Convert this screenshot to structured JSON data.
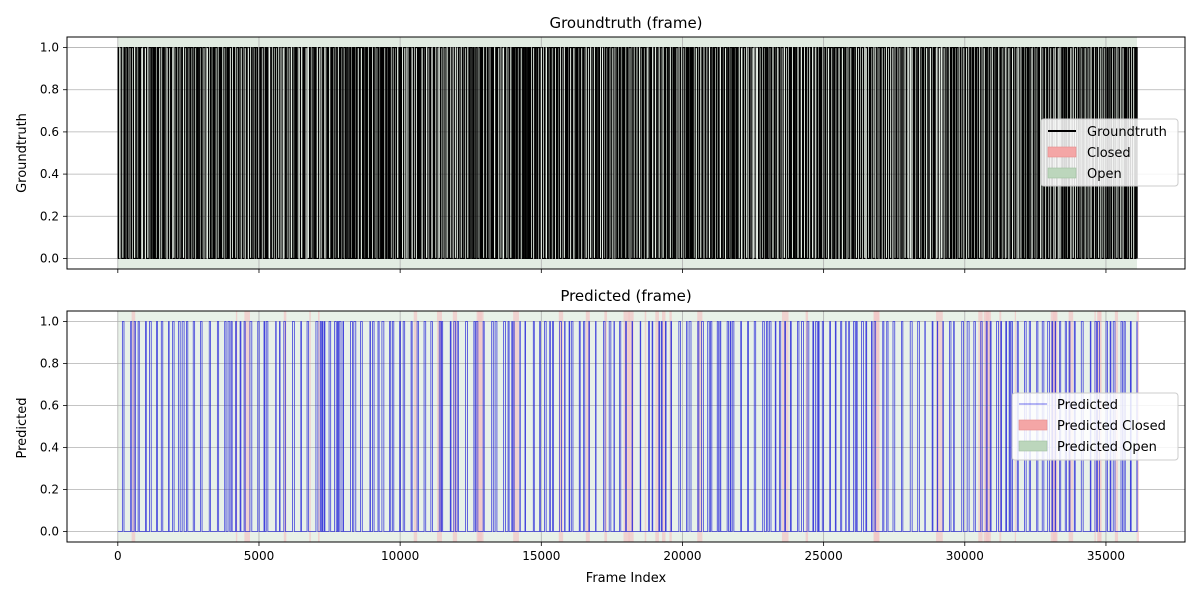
{
  "chart_data": [
    {
      "type": "line",
      "title": "Groundtruth (frame)",
      "xlabel": "",
      "ylabel": "Groundtruth",
      "xlim": [
        -1800,
        37800
      ],
      "ylim": [
        -0.05,
        1.05
      ],
      "x_ticks": [
        0,
        5000,
        10000,
        15000,
        20000,
        25000,
        30000,
        35000
      ],
      "x_tick_labels_shown": false,
      "y_ticks": [
        "0.0",
        "0.2",
        "0.4",
        "0.6",
        "0.8",
        "1.0"
      ],
      "grid": true,
      "legend_position": "center right",
      "legend": [
        {
          "label": "Groundtruth",
          "kind": "line",
          "color": "#000000"
        },
        {
          "label": "Closed",
          "kind": "patch",
          "color": "#f4a6a6"
        },
        {
          "label": "Open",
          "kind": "patch",
          "color": "#bcd6bc"
        }
      ],
      "series": [
        {
          "name": "Groundtruth",
          "color": "#000000",
          "x_range": [
            0,
            36100
          ],
          "values_binary": [
            0,
            1
          ],
          "density": "dense"
        }
      ]
    },
    {
      "type": "line",
      "title": "Predicted (frame)",
      "xlabel": "Frame Index",
      "ylabel": "Predicted",
      "xlim": [
        -1800,
        37800
      ],
      "ylim": [
        -0.05,
        1.05
      ],
      "x_ticks": [
        0,
        5000,
        10000,
        15000,
        20000,
        25000,
        30000,
        35000
      ],
      "x_tick_labels": [
        "0",
        "5000",
        "10000",
        "15000",
        "20000",
        "25000",
        "30000",
        "35000"
      ],
      "y_ticks": [
        "0.0",
        "0.2",
        "0.4",
        "0.6",
        "0.8",
        "1.0"
      ],
      "grid": true,
      "legend_position": "center right",
      "legend": [
        {
          "label": "Predicted",
          "kind": "line",
          "color": "#3c3ce6"
        },
        {
          "label": "Predicted Closed",
          "kind": "patch",
          "color": "#f4a6a6"
        },
        {
          "label": "Predicted Open",
          "kind": "patch",
          "color": "#bcd6bc"
        }
      ],
      "series": [
        {
          "name": "Predicted",
          "color": "#2323d9",
          "x_range": [
            0,
            36100
          ],
          "values_binary": [
            0,
            1
          ],
          "density": "sparse"
        }
      ]
    }
  ]
}
